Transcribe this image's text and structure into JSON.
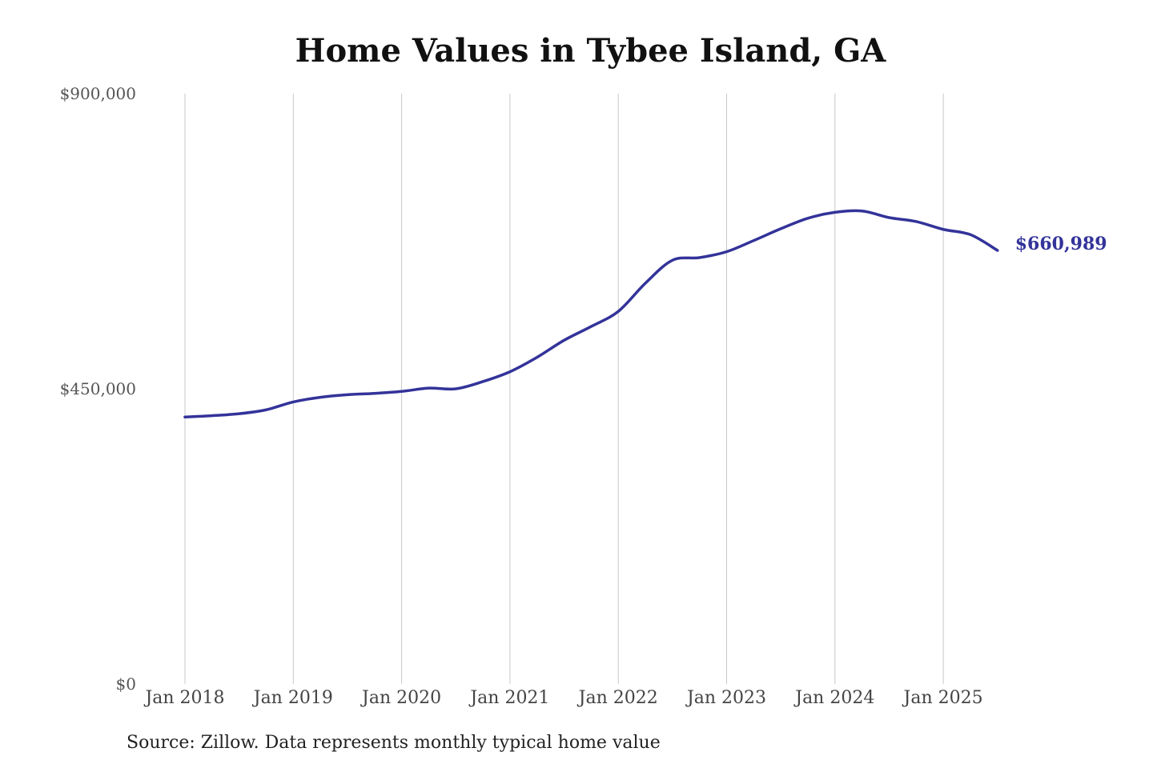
{
  "chart_data": {
    "type": "line",
    "title": "Home Values in Tybee Island, GA",
    "xlabel": "",
    "ylabel": "",
    "ylim": [
      0,
      900000
    ],
    "xlim": [
      "2018-01",
      "2025-07"
    ],
    "grid": "vertical",
    "yticks": [
      {
        "value": 0,
        "label": "$0"
      },
      {
        "value": 450000,
        "label": "$450,000"
      },
      {
        "value": 900000,
        "label": "$900,000"
      }
    ],
    "xticks": [
      {
        "value": "2018-01",
        "label": "Jan 2018"
      },
      {
        "value": "2019-01",
        "label": "Jan 2019"
      },
      {
        "value": "2020-01",
        "label": "Jan 2020"
      },
      {
        "value": "2021-01",
        "label": "Jan 2021"
      },
      {
        "value": "2022-01",
        "label": "Jan 2022"
      },
      {
        "value": "2023-01",
        "label": "Jan 2023"
      },
      {
        "value": "2024-01",
        "label": "Jan 2024"
      },
      {
        "value": "2025-01",
        "label": "Jan 2025"
      }
    ],
    "series": [
      {
        "color": "#33339a",
        "end_label": "$660,989",
        "points": [
          {
            "x": "2018-01",
            "y": 407000
          },
          {
            "x": "2018-04",
            "y": 409000
          },
          {
            "x": "2018-07",
            "y": 412000
          },
          {
            "x": "2018-10",
            "y": 418000
          },
          {
            "x": "2019-01",
            "y": 430000
          },
          {
            "x": "2019-04",
            "y": 437000
          },
          {
            "x": "2019-07",
            "y": 441000
          },
          {
            "x": "2019-10",
            "y": 443000
          },
          {
            "x": "2020-01",
            "y": 446000
          },
          {
            "x": "2020-04",
            "y": 451000
          },
          {
            "x": "2020-07",
            "y": 450000
          },
          {
            "x": "2020-10",
            "y": 461000
          },
          {
            "x": "2021-01",
            "y": 476000
          },
          {
            "x": "2021-04",
            "y": 498000
          },
          {
            "x": "2021-07",
            "y": 524000
          },
          {
            "x": "2021-10",
            "y": 545000
          },
          {
            "x": "2022-01",
            "y": 568000
          },
          {
            "x": "2022-04",
            "y": 611000
          },
          {
            "x": "2022-07",
            "y": 646000
          },
          {
            "x": "2022-10",
            "y": 650000
          },
          {
            "x": "2023-01",
            "y": 659000
          },
          {
            "x": "2023-04",
            "y": 676000
          },
          {
            "x": "2023-07",
            "y": 694000
          },
          {
            "x": "2023-10",
            "y": 710000
          },
          {
            "x": "2024-01",
            "y": 719000
          },
          {
            "x": "2024-04",
            "y": 721000
          },
          {
            "x": "2024-07",
            "y": 711000
          },
          {
            "x": "2024-10",
            "y": 705000
          },
          {
            "x": "2025-01",
            "y": 693000
          },
          {
            "x": "2025-04",
            "y": 685000
          },
          {
            "x": "2025-07",
            "y": 661000
          }
        ]
      }
    ]
  },
  "source_note": "Source: Zillow. Data represents monthly typical home value"
}
